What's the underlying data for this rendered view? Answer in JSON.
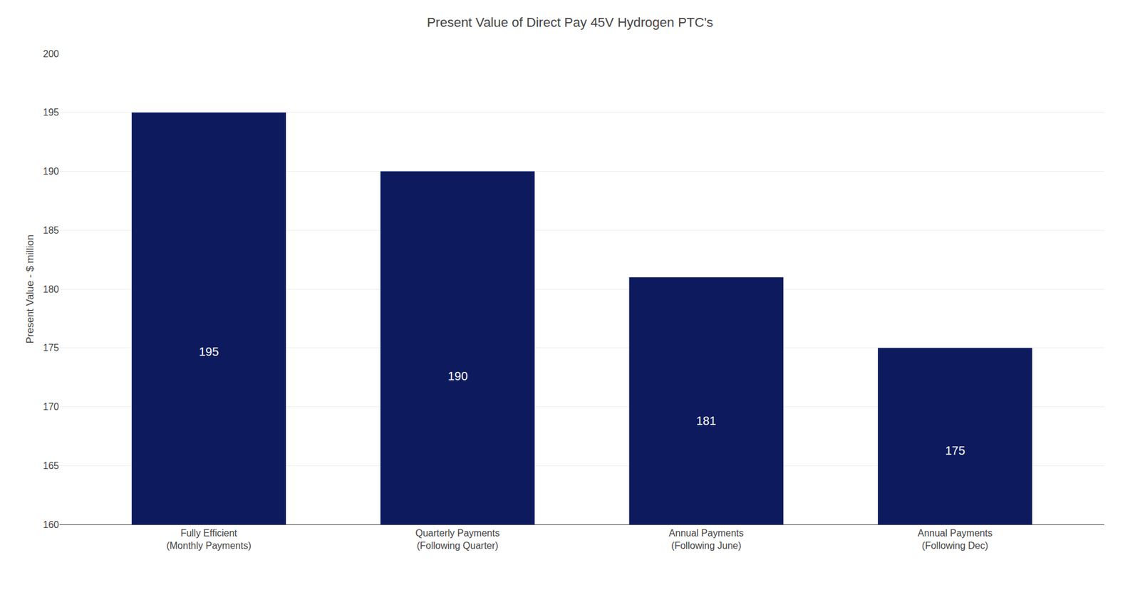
{
  "chart_data": {
    "type": "bar",
    "title": "Present Value of Direct Pay 45V Hydrogen PTC's",
    "categories": [
      "Fully Efficient\n(Monthly Payments)",
      "Quarterly Payments\n(Following Quarter)",
      "Annual Payments\n(Following June)",
      "Annual Payments\n(Following Dec)"
    ],
    "values": [
      195,
      190,
      181,
      175
    ],
    "color": "#0D1B5E",
    "ylabel": "Present Value - $ million",
    "ylim": [
      160,
      200
    ],
    "yticks": [
      160,
      165,
      170,
      175,
      180,
      185,
      190,
      195,
      200
    ],
    "grid": true,
    "data_labels": true
  }
}
